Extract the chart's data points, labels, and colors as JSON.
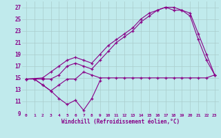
{
  "xlabel": "Windchill (Refroidissement éolien,°C)",
  "xlim": [
    -0.5,
    23.5
  ],
  "ylim": [
    9,
    28
  ],
  "xticks": [
    0,
    1,
    2,
    3,
    4,
    5,
    6,
    7,
    8,
    9,
    10,
    11,
    12,
    13,
    14,
    15,
    16,
    17,
    18,
    19,
    20,
    21,
    22,
    23
  ],
  "yticks": [
    9,
    11,
    13,
    15,
    17,
    19,
    21,
    23,
    25,
    27
  ],
  "bg_color": "#c0eaec",
  "grid_color": "#aacccc",
  "line_color": "#880088",
  "line1_x": [
    0,
    1,
    2,
    3,
    4,
    5,
    6,
    7,
    8,
    9,
    10,
    11,
    12,
    13,
    14,
    15,
    16,
    17,
    18,
    19,
    20,
    21,
    22,
    23
  ],
  "line1_y": [
    14.8,
    14.8,
    13.8,
    12.8,
    13.8,
    14.8,
    14.8,
    16.0,
    15.5,
    15.0,
    15.0,
    15.0,
    15.0,
    15.0,
    15.0,
    15.0,
    15.0,
    15.0,
    15.0,
    15.0,
    15.0,
    15.0,
    15.0,
    15.5
  ],
  "line2_x": [
    0,
    2,
    3,
    4,
    5,
    6,
    7,
    8,
    9,
    10,
    11,
    12,
    13,
    14,
    15,
    16,
    17,
    18,
    19,
    20,
    21,
    22,
    23
  ],
  "line2_y": [
    14.8,
    14.8,
    14.8,
    15.5,
    17.0,
    17.5,
    17.0,
    16.5,
    18.0,
    19.5,
    21.0,
    22.0,
    23.0,
    24.5,
    25.5,
    26.5,
    27.0,
    27.0,
    26.5,
    25.5,
    21.5,
    18.0,
    15.5
  ],
  "line3_x": [
    0,
    2,
    3,
    4,
    5,
    6,
    7,
    8,
    9,
    10,
    11,
    12,
    13,
    14,
    15,
    16,
    17,
    18,
    19,
    20,
    21,
    22,
    23
  ],
  "line3_y": [
    14.8,
    15.0,
    16.0,
    17.0,
    18.0,
    18.5,
    18.0,
    17.5,
    19.0,
    20.5,
    21.5,
    22.5,
    23.5,
    25.0,
    26.0,
    26.5,
    27.0,
    26.5,
    26.5,
    26.0,
    22.5,
    19.0,
    15.5
  ],
  "line4_x": [
    1,
    2,
    3,
    4,
    5,
    6,
    7,
    8,
    9
  ],
  "line4_y": [
    14.8,
    13.8,
    12.8,
    11.5,
    10.5,
    11.2,
    9.5,
    11.5,
    14.5
  ]
}
